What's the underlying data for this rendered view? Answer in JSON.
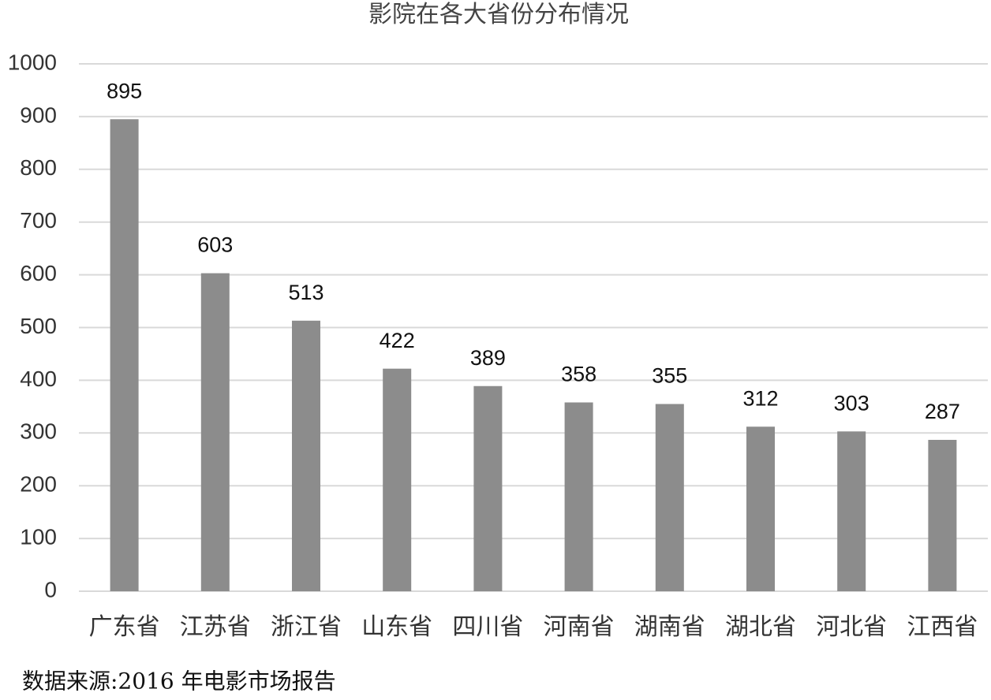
{
  "chart_data": {
    "type": "bar",
    "title": "影院在各大省份分布情况",
    "categories": [
      "广东省",
      "江苏省",
      "浙江省",
      "山东省",
      "四川省",
      "河南省",
      "湖南省",
      "湖北省",
      "河北省",
      "江西省"
    ],
    "values": [
      895,
      603,
      513,
      422,
      389,
      358,
      355,
      312,
      303,
      287
    ],
    "color": "#8c8c8c",
    "ylim": [
      0,
      1000
    ],
    "yticks": [
      0,
      100,
      200,
      300,
      400,
      500,
      600,
      700,
      800,
      900,
      1000
    ],
    "grid": true,
    "source": "数据来源:2016 年电影市场报告"
  }
}
